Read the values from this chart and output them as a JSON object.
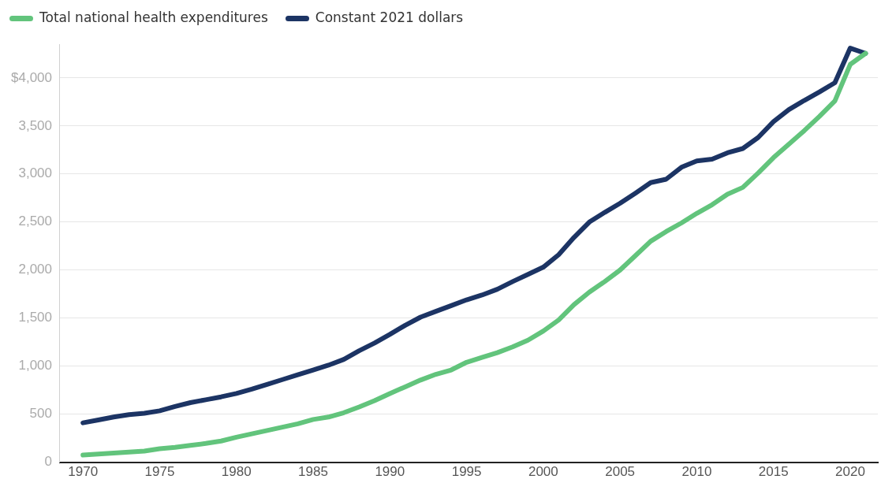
{
  "chart_data": {
    "type": "line",
    "x": [
      1970,
      1971,
      1972,
      1973,
      1974,
      1975,
      1976,
      1977,
      1978,
      1979,
      1980,
      1981,
      1982,
      1983,
      1984,
      1985,
      1986,
      1987,
      1988,
      1989,
      1990,
      1991,
      1992,
      1993,
      1994,
      1995,
      1996,
      1997,
      1998,
      1999,
      2000,
      2001,
      2002,
      2003,
      2004,
      2005,
      2006,
      2007,
      2008,
      2009,
      2010,
      2011,
      2012,
      2013,
      2014,
      2015,
      2016,
      2017,
      2018,
      2019,
      2020,
      2021
    ],
    "series": [
      {
        "name": "Total national health expenditures",
        "color": "#62c47c",
        "values": [
          75,
          85,
          95,
          105,
          115,
          140,
          155,
          175,
          195,
          220,
          260,
          295,
          330,
          365,
          400,
          445,
          470,
          515,
          575,
          640,
          715,
          785,
          855,
          915,
          960,
          1040,
          1090,
          1140,
          1200,
          1270,
          1365,
          1480,
          1640,
          1770,
          1880,
          2000,
          2150,
          2300,
          2400,
          2490,
          2590,
          2680,
          2790,
          2860,
          3010,
          3170,
          3310,
          3450,
          3600,
          3760,
          4140,
          4255
        ]
      },
      {
        "name": "Constant 2021 dollars",
        "color": "#1c3464",
        "values": [
          410,
          440,
          470,
          495,
          510,
          535,
          580,
          620,
          650,
          680,
          715,
          760,
          810,
          860,
          910,
          960,
          1010,
          1070,
          1160,
          1240,
          1330,
          1425,
          1510,
          1570,
          1630,
          1690,
          1740,
          1800,
          1880,
          1955,
          2030,
          2160,
          2340,
          2500,
          2600,
          2695,
          2800,
          2910,
          2945,
          3070,
          3135,
          3155,
          3220,
          3265,
          3380,
          3545,
          3670,
          3765,
          3855,
          3950,
          4310,
          4255
        ]
      }
    ],
    "xlim": [
      1968.5,
      2021.8
    ],
    "xticks": [
      1970,
      1975,
      1980,
      1985,
      1990,
      1995,
      2000,
      2005,
      2010,
      2015,
      2020
    ],
    "ylim": [
      0,
      4350
    ],
    "yticks": [
      0,
      {
        "value": 500,
        "label": "500"
      },
      {
        "value": 1000,
        "label": "1,000"
      },
      {
        "value": 1500,
        "label": "1,500"
      },
      {
        "value": 2000,
        "label": "2,000"
      },
      {
        "value": 2500,
        "label": "2,500"
      },
      {
        "value": 3000,
        "label": "3,000"
      },
      {
        "value": 3500,
        "label": "3,500"
      },
      {
        "value": 4000,
        "label": "$4,000"
      }
    ],
    "grid": "y",
    "legend": "top left",
    "marker": "none",
    "line_style": "solid"
  }
}
